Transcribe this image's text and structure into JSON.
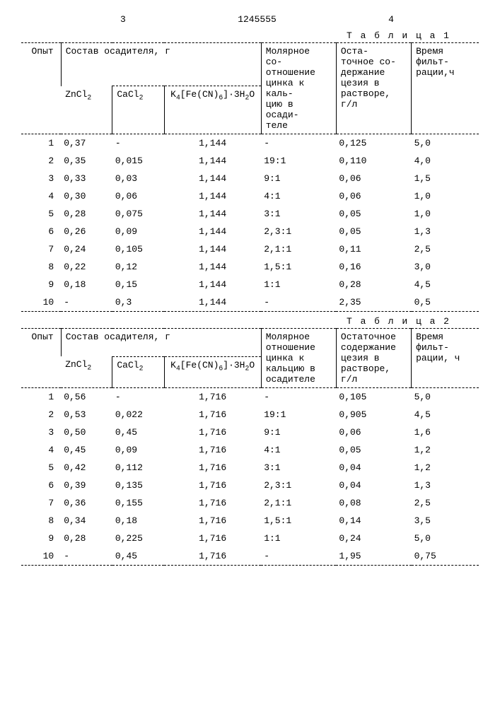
{
  "header": {
    "page_left": "3",
    "doc_number": "1245555",
    "page_right": "4"
  },
  "tables": [
    {
      "caption": "Т а б л и ц а 1",
      "headers": {
        "opyt": "Опыт",
        "precip_group": "Состав осадителя, г",
        "molar": "Молярное со-\nотношение\nцинка к каль-\nцию в осади-\nтеле",
        "residual": "Оста-\nточное со-\nдержание\nцезия в\nрастворе,\nг/л",
        "time": "Время\nфильт-\nрации,ч",
        "sub": {
          "zncl2": "ZnCl₂",
          "cacl2": "CaCl₂",
          "k4": "K₄[Fe(CN)₆]·3H₂O"
        }
      },
      "rows": [
        [
          "1",
          "0,37",
          "-",
          "1,144",
          "-",
          "0,125",
          "5,0"
        ],
        [
          "2",
          "0,35",
          "0,015",
          "1,144",
          "19:1",
          "0,110",
          "4,0"
        ],
        [
          "3",
          "0,33",
          "0,03",
          "1,144",
          "9:1",
          "0,06",
          "1,5"
        ],
        [
          "4",
          "0,30",
          "0,06",
          "1,144",
          "4:1",
          "0,06",
          "1,0"
        ],
        [
          "5",
          "0,28",
          "0,075",
          "1,144",
          "3:1",
          "0,05",
          "1,0"
        ],
        [
          "6",
          "0,26",
          "0,09",
          "1,144",
          "2,3:1",
          "0,05",
          "1,3"
        ],
        [
          "7",
          "0,24",
          "0,105",
          "1,144",
          "2,1:1",
          "0,11",
          "2,5"
        ],
        [
          "8",
          "0,22",
          "0,12",
          "1,144",
          "1,5:1",
          "0,16",
          "3,0"
        ],
        [
          "9",
          "0,18",
          "0,15",
          "1,144",
          "1:1",
          "0,28",
          "4,5"
        ],
        [
          "10",
          "-",
          "0,3",
          "1,144",
          "-",
          "2,35",
          "0,5"
        ]
      ]
    },
    {
      "caption": "Т а б л и ц а 2",
      "headers": {
        "opyt": "Опыт",
        "precip_group": "Состав осадителя, г",
        "molar": "Молярное\nотношение\nцинка к\nкальцию в\nосадителе",
        "residual": "Остаточное\nсодержание\nцезия в\nрастворе,\nг/л",
        "time": "Время фильт-\nрации, ч",
        "sub": {
          "zncl2": "ZnCl₂",
          "cacl2": "CaCl₂",
          "k4": "K₄[Fe(CN)₆]·3H₂O"
        }
      },
      "rows": [
        [
          "1",
          "0,56",
          "-",
          "1,716",
          "-",
          "0,105",
          "5,0"
        ],
        [
          "2",
          "0,53",
          "0,022",
          "1,716",
          "19:1",
          "0,905",
          "4,5"
        ],
        [
          "3",
          "0,50",
          "0,45",
          "1,716",
          "9:1",
          "0,06",
          "1,6"
        ],
        [
          "4",
          "0,45",
          "0,09",
          "1,716",
          "4:1",
          "0,05",
          "1,2"
        ],
        [
          "5",
          "0,42",
          "0,112",
          "1,716",
          "3:1",
          "0,04",
          "1,2"
        ],
        [
          "6",
          "0,39",
          "0,135",
          "1,716",
          "2,3:1",
          "0,04",
          "1,3"
        ],
        [
          "7",
          "0,36",
          "0,155",
          "1,716",
          "2,1:1",
          "0,08",
          "2,5"
        ],
        [
          "8",
          "0,34",
          "0,18",
          "1,716",
          "1,5:1",
          "0,14",
          "3,5"
        ],
        [
          "9",
          "0,28",
          "0,225",
          "1,716",
          "1:1",
          "0,24",
          "5,0"
        ],
        [
          "10",
          "-",
          "0,45",
          "1,716",
          "-",
          "1,95",
          "0,75"
        ]
      ]
    }
  ]
}
